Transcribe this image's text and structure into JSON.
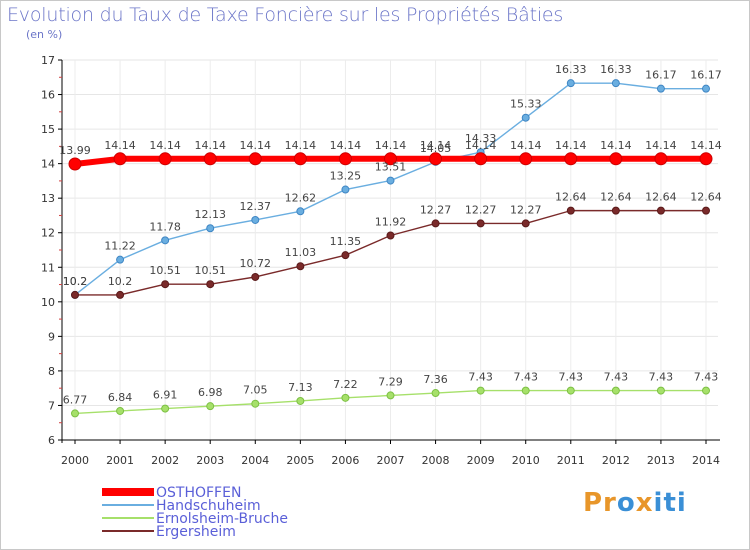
{
  "chart_data": {
    "type": "line",
    "title": "Evolution du Taux de Taxe Foncière sur les Propriétés Bâties",
    "unit_label": "(en %)",
    "xlabel": "",
    "ylabel": "",
    "ylim": [
      6,
      17
    ],
    "yticks": [
      "6",
      "7",
      "8",
      "9",
      "10",
      "11",
      "12",
      "13",
      "14",
      "15",
      "16",
      "17"
    ],
    "categories": [
      "2000",
      "2001",
      "2002",
      "2003",
      "2004",
      "2005",
      "2006",
      "2007",
      "2008",
      "2009",
      "2010",
      "2011",
      "2012",
      "2013",
      "2014"
    ],
    "series": [
      {
        "name": "OSTHOFFEN",
        "color": "#ff0000",
        "values": [
          13.99,
          14.14,
          14.14,
          14.14,
          14.14,
          14.14,
          14.14,
          14.14,
          14.14,
          14.14,
          14.14,
          14.14,
          14.14,
          14.14,
          14.14
        ],
        "labels": [
          "13.99",
          "14.14",
          "14.14",
          "14.14",
          "14.14",
          "14.14",
          "14.14",
          "14.14",
          "14.14",
          "14.14",
          "14.14",
          "14.14",
          "14.14",
          "14.14",
          "14.14"
        ]
      },
      {
        "name": "Handschuheim",
        "color": "#6aaee0",
        "values": [
          10.2,
          11.22,
          11.78,
          12.13,
          12.37,
          12.62,
          13.25,
          13.51,
          14.05,
          14.33,
          15.33,
          16.33,
          16.33,
          16.17,
          16.17
        ],
        "labels": [
          "10.2",
          "11.22",
          "11.78",
          "12.13",
          "12.37",
          "12.62",
          "13.25",
          "13.51",
          "14.05",
          "14.33",
          "15.33",
          "16.33",
          "16.33",
          "16.17",
          "16.17"
        ]
      },
      {
        "name": "Ernolsheim-Bruche",
        "color": "#a6e06a",
        "values": [
          6.77,
          6.84,
          6.91,
          6.98,
          7.05,
          7.13,
          7.22,
          7.29,
          7.36,
          7.43,
          7.43,
          7.43,
          7.43,
          7.43,
          7.43
        ],
        "labels": [
          "6.77",
          "6.84",
          "6.91",
          "6.98",
          "7.05",
          "7.13",
          "7.22",
          "7.29",
          "7.36",
          "7.43",
          "7.43",
          "7.43",
          "7.43",
          "7.43",
          "7.43"
        ]
      },
      {
        "name": "Ergersheim",
        "color": "#7a2a2a",
        "values": [
          10.2,
          10.2,
          10.51,
          10.51,
          10.72,
          11.03,
          11.35,
          11.92,
          12.27,
          12.27,
          12.27,
          12.64,
          12.64,
          12.64,
          12.64
        ],
        "labels": [
          "10.2",
          "10.2",
          "10.51",
          "10.51",
          "10.72",
          "11.03",
          "11.35",
          "11.92",
          "12.27",
          "12.27",
          "12.27",
          "12.64",
          "12.64",
          "12.64",
          "12.64"
        ]
      }
    ],
    "legend_position": "bottom-left"
  },
  "logo": {
    "text": "Proxiti",
    "parts": [
      "Pr",
      "o",
      "x",
      "iti"
    ]
  }
}
